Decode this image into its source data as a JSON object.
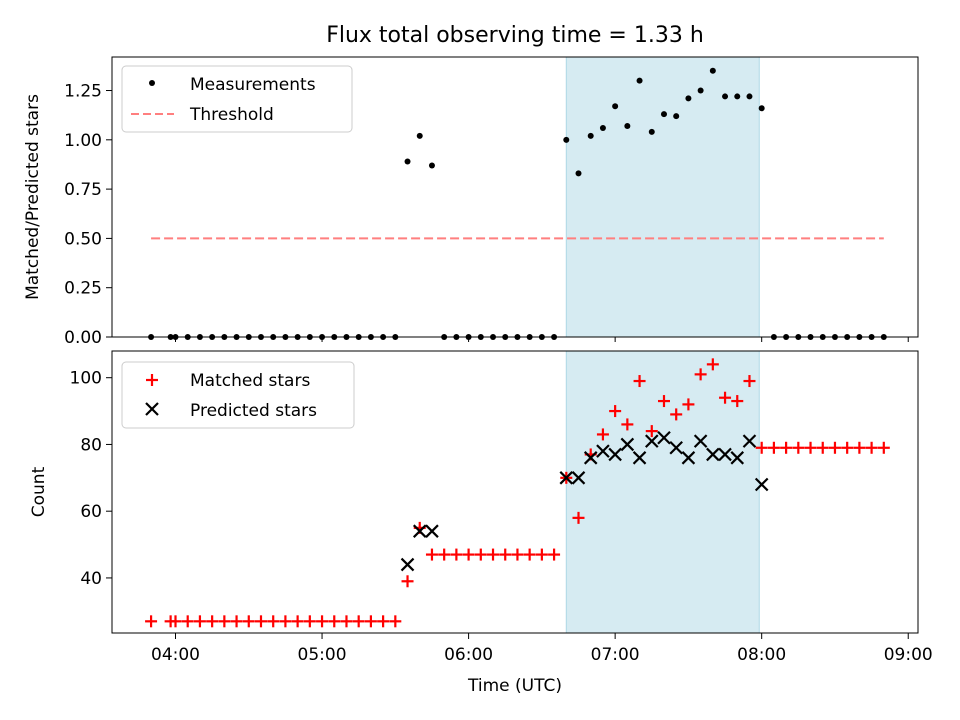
{
  "chart_data": [
    {
      "type": "scatter",
      "title": "Flux total observing time = 1.33 h",
      "ylabel": "Matched/Predicted stars",
      "xlabel": "",
      "ylim": [
        0,
        1.42
      ],
      "yticks": [
        "0.00",
        "0.25",
        "0.50",
        "0.75",
        "1.00",
        "1.25"
      ],
      "legend": [
        "Measurements",
        "Threshold"
      ],
      "legend_placement": "top-left",
      "highlight_span": {
        "start": "06:40",
        "end": "07:59",
        "color": "#add8e6"
      },
      "series": [
        {
          "name": "Measurements",
          "marker": "dot",
          "color": "#000000",
          "x": [
            "03:50",
            "03:58",
            "04:00",
            "04:05",
            "04:10",
            "04:15",
            "04:20",
            "04:25",
            "04:30",
            "04:35",
            "04:40",
            "04:45",
            "04:50",
            "04:55",
            "05:00",
            "05:05",
            "05:10",
            "05:15",
            "05:20",
            "05:25",
            "05:30",
            "05:35",
            "05:40",
            "05:45",
            "05:50",
            "05:55",
            "06:00",
            "06:05",
            "06:10",
            "06:15",
            "06:20",
            "06:25",
            "06:30",
            "06:35",
            "06:40",
            "06:45",
            "06:50",
            "06:55",
            "07:00",
            "07:05",
            "07:10",
            "07:15",
            "07:20",
            "07:25",
            "07:30",
            "07:35",
            "07:40",
            "07:45",
            "07:50",
            "07:55",
            "08:00",
            "08:05",
            "08:10",
            "08:15",
            "08:20",
            "08:25",
            "08:30",
            "08:35",
            "08:40",
            "08:45",
            "08:50"
          ],
          "y": [
            0,
            0,
            0,
            0,
            0,
            0,
            0,
            0,
            0,
            0,
            0,
            0,
            0,
            0,
            0,
            0,
            0,
            0,
            0,
            0,
            0,
            0.89,
            1.02,
            0.87,
            0,
            0,
            0,
            0,
            0,
            0,
            0,
            0,
            0,
            0,
            1.0,
            0.83,
            1.02,
            1.06,
            1.17,
            1.07,
            1.3,
            1.04,
            1.13,
            1.12,
            1.21,
            1.25,
            1.35,
            1.22,
            1.22,
            1.22,
            1.16,
            0,
            0,
            0,
            0,
            0,
            0,
            0,
            0,
            0,
            0
          ]
        },
        {
          "name": "Threshold",
          "marker": "dashed-line",
          "color": "#ff7f7f",
          "x": [
            "03:50",
            "08:50"
          ],
          "y": [
            0.5,
            0.5
          ]
        }
      ]
    },
    {
      "type": "scatter",
      "title": "",
      "ylabel": "Count",
      "xlabel": "Time (UTC)",
      "ylim": [
        23.5,
        108
      ],
      "yticks": [
        "40",
        "60",
        "80",
        "100"
      ],
      "xticks": [
        "04:00",
        "05:00",
        "06:00",
        "07:00",
        "08:00",
        "09:00"
      ],
      "xlim": [
        "03:34",
        "09:04"
      ],
      "legend": [
        "Matched stars",
        "Predicted stars"
      ],
      "legend_placement": "top-left",
      "highlight_span": {
        "start": "06:40",
        "end": "07:59",
        "color": "#add8e6"
      },
      "series": [
        {
          "name": "Matched stars",
          "marker": "plus",
          "color": "#ff0000",
          "x": [
            "03:50",
            "03:58",
            "04:00",
            "04:05",
            "04:10",
            "04:15",
            "04:20",
            "04:25",
            "04:30",
            "04:35",
            "04:40",
            "04:45",
            "04:50",
            "04:55",
            "05:00",
            "05:05",
            "05:10",
            "05:15",
            "05:20",
            "05:25",
            "05:30",
            "05:35",
            "05:40",
            "05:45",
            "05:50",
            "05:55",
            "06:00",
            "06:05",
            "06:10",
            "06:15",
            "06:20",
            "06:25",
            "06:30",
            "06:35",
            "06:40",
            "06:45",
            "06:50",
            "06:55",
            "07:00",
            "07:05",
            "07:10",
            "07:15",
            "07:20",
            "07:25",
            "07:30",
            "07:35",
            "07:40",
            "07:45",
            "07:50",
            "07:55",
            "08:00",
            "08:05",
            "08:10",
            "08:15",
            "08:20",
            "08:25",
            "08:30",
            "08:35",
            "08:40",
            "08:45",
            "08:50"
          ],
          "y": [
            27,
            27,
            27,
            27,
            27,
            27,
            27,
            27,
            27,
            27,
            27,
            27,
            27,
            27,
            27,
            27,
            27,
            27,
            27,
            27,
            27,
            39,
            55,
            47,
            47,
            47,
            47,
            47,
            47,
            47,
            47,
            47,
            47,
            47,
            70,
            58,
            77,
            83,
            90,
            86,
            99,
            84,
            93,
            89,
            92,
            101,
            104,
            94,
            93,
            99,
            79,
            79,
            79,
            79,
            79,
            79,
            79,
            79,
            79,
            79,
            79
          ]
        },
        {
          "name": "Predicted stars",
          "marker": "x",
          "color": "#000000",
          "x": [
            "05:35",
            "05:40",
            "05:45",
            "06:40",
            "06:45",
            "06:50",
            "06:55",
            "07:00",
            "07:05",
            "07:10",
            "07:15",
            "07:20",
            "07:25",
            "07:30",
            "07:35",
            "07:40",
            "07:45",
            "07:50",
            "07:55",
            "08:00"
          ],
          "y": [
            44,
            54,
            54,
            70,
            70,
            76,
            78,
            77,
            80,
            76,
            81,
            82,
            79,
            76,
            81,
            77,
            77,
            76,
            81,
            68
          ]
        }
      ]
    }
  ]
}
